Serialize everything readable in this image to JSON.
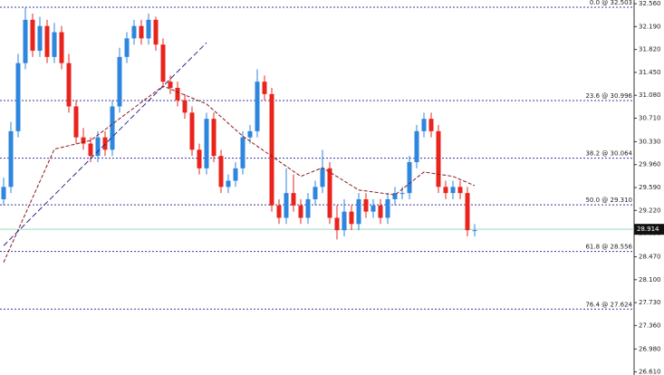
{
  "chart_data": {
    "type": "candlestick",
    "open": [
      29.4,
      29.6,
      30.5,
      31.6,
      32.3,
      31.8,
      32.2,
      31.7,
      32.1,
      31.6,
      30.9,
      30.4,
      30.3,
      30.1,
      30.4,
      30.2,
      30.9,
      31.7,
      32.0,
      32.2,
      32.0,
      32.3,
      31.9,
      31.3,
      31.2,
      31.0,
      30.8,
      30.2,
      29.9,
      30.7,
      30.1,
      29.6,
      29.7,
      29.9,
      30.4,
      30.5,
      31.3,
      31.1,
      29.3,
      29.1,
      29.5,
      29.3,
      29.1,
      29.4,
      29.6,
      29.9,
      29.1,
      28.9,
      29.2,
      29.0,
      29.4,
      29.2,
      29.3,
      29.1,
      29.4,
      29.5,
      29.5,
      30.0,
      30.5,
      30.7,
      30.5,
      29.6,
      29.5,
      29.6,
      29.5,
      28.9
    ],
    "high": [
      29.75,
      30.65,
      31.75,
      32.5,
      32.4,
      32.35,
      32.3,
      32.25,
      32.2,
      31.75,
      31.0,
      30.55,
      30.4,
      30.5,
      30.5,
      31.0,
      31.85,
      32.1,
      32.3,
      32.3,
      32.4,
      32.35,
      32.0,
      31.4,
      31.3,
      31.1,
      30.9,
      30.3,
      30.8,
      30.8,
      30.2,
      29.8,
      30.0,
      30.5,
      30.6,
      31.5,
      31.4,
      31.2,
      29.4,
      29.9,
      29.8,
      29.4,
      29.5,
      29.7,
      30.2,
      30.0,
      29.3,
      29.4,
      29.3,
      29.5,
      29.5,
      29.4,
      29.4,
      29.5,
      29.6,
      29.6,
      30.1,
      30.6,
      30.8,
      30.8,
      30.6,
      29.7,
      29.7,
      29.7,
      29.6,
      29.0
    ],
    "low": [
      29.3,
      29.5,
      30.4,
      31.5,
      31.7,
      31.7,
      31.6,
      31.6,
      31.5,
      30.8,
      30.3,
      30.2,
      30.0,
      30.0,
      30.1,
      30.1,
      30.8,
      31.6,
      31.9,
      31.9,
      31.9,
      31.8,
      31.2,
      31.1,
      30.9,
      30.7,
      30.1,
      29.8,
      29.8,
      30.0,
      29.5,
      29.5,
      29.6,
      29.8,
      30.3,
      30.4,
      31.0,
      29.2,
      29.0,
      29.0,
      29.2,
      29.0,
      29.0,
      29.3,
      29.5,
      29.0,
      28.75,
      28.8,
      28.9,
      28.9,
      29.1,
      29.1,
      29.0,
      29.0,
      29.3,
      29.4,
      29.4,
      29.9,
      30.4,
      30.4,
      29.5,
      29.4,
      29.4,
      29.4,
      28.8,
      28.8
    ],
    "close": [
      29.6,
      30.5,
      31.6,
      32.3,
      31.8,
      32.2,
      31.7,
      32.1,
      31.6,
      30.9,
      30.4,
      30.3,
      30.1,
      30.4,
      30.2,
      30.9,
      31.7,
      32.0,
      32.2,
      32.0,
      32.3,
      31.9,
      31.3,
      31.2,
      31.0,
      30.8,
      30.2,
      29.9,
      30.7,
      30.1,
      29.6,
      29.7,
      29.9,
      30.4,
      30.5,
      31.3,
      31.1,
      29.3,
      29.1,
      29.5,
      29.3,
      29.1,
      29.4,
      29.6,
      29.9,
      29.1,
      28.9,
      29.2,
      29.0,
      29.4,
      29.2,
      29.3,
      29.1,
      29.4,
      29.5,
      29.5,
      30.0,
      30.5,
      30.7,
      30.5,
      29.6,
      29.5,
      29.6,
      29.5,
      28.9,
      28.9
    ],
    "up_color": "#2e86de",
    "down_color": "#e8241c",
    "moving_average": {
      "x": [
        0,
        7,
        12,
        22,
        28,
        33,
        41,
        44,
        49,
        54,
        58,
        62,
        65
      ],
      "values": [
        28.38,
        30.21,
        30.35,
        31.23,
        30.94,
        30.42,
        29.77,
        29.91,
        29.55,
        29.47,
        29.84,
        29.77,
        29.62
      ],
      "color": "#8b1a1a"
    },
    "trendline": {
      "x": [
        0,
        28
      ],
      "values": [
        28.65,
        31.93
      ],
      "color": "#2a2a8a"
    },
    "fib_levels": [
      {
        "value": 32.503,
        "label": "0.0 @ 32.503"
      },
      {
        "value": 30.996,
        "label": "23.6 @ 30.996"
      },
      {
        "value": 30.064,
        "label": "38.2 @ 30.064"
      },
      {
        "value": 29.31,
        "label": "50.0 @ 29.310"
      },
      {
        "value": 28.556,
        "label": "61.8 @ 28.556"
      },
      {
        "value": 27.624,
        "label": "76.4 @ 27.624"
      }
    ],
    "fib_color": "#3a3aa0",
    "current_price": {
      "value": 28.914,
      "label": "28.914",
      "color": "#9fd9b8"
    },
    "ylim": [
      26.56,
      32.62
    ],
    "yticks": [
      {
        "value": 32.56,
        "label": "32.560"
      },
      {
        "value": 32.19,
        "label": "32.190"
      },
      {
        "value": 31.82,
        "label": "31.820"
      },
      {
        "value": 31.45,
        "label": "31.450"
      },
      {
        "value": 31.08,
        "label": "31.080"
      },
      {
        "value": 30.71,
        "label": "30.710"
      },
      {
        "value": 30.33,
        "label": "30.330"
      },
      {
        "value": 29.96,
        "label": "29.960"
      },
      {
        "value": 29.59,
        "label": "29.590"
      },
      {
        "value": 29.22,
        "label": "29.220"
      },
      {
        "value": 28.85,
        "label": "28.850"
      },
      {
        "value": 28.47,
        "label": "28.470"
      },
      {
        "value": 28.1,
        "label": "28.100"
      },
      {
        "value": 27.73,
        "label": "27.730"
      },
      {
        "value": 27.36,
        "label": "27.360"
      },
      {
        "value": 26.98,
        "label": "26.980"
      },
      {
        "value": 26.61,
        "label": "26.610"
      }
    ]
  }
}
